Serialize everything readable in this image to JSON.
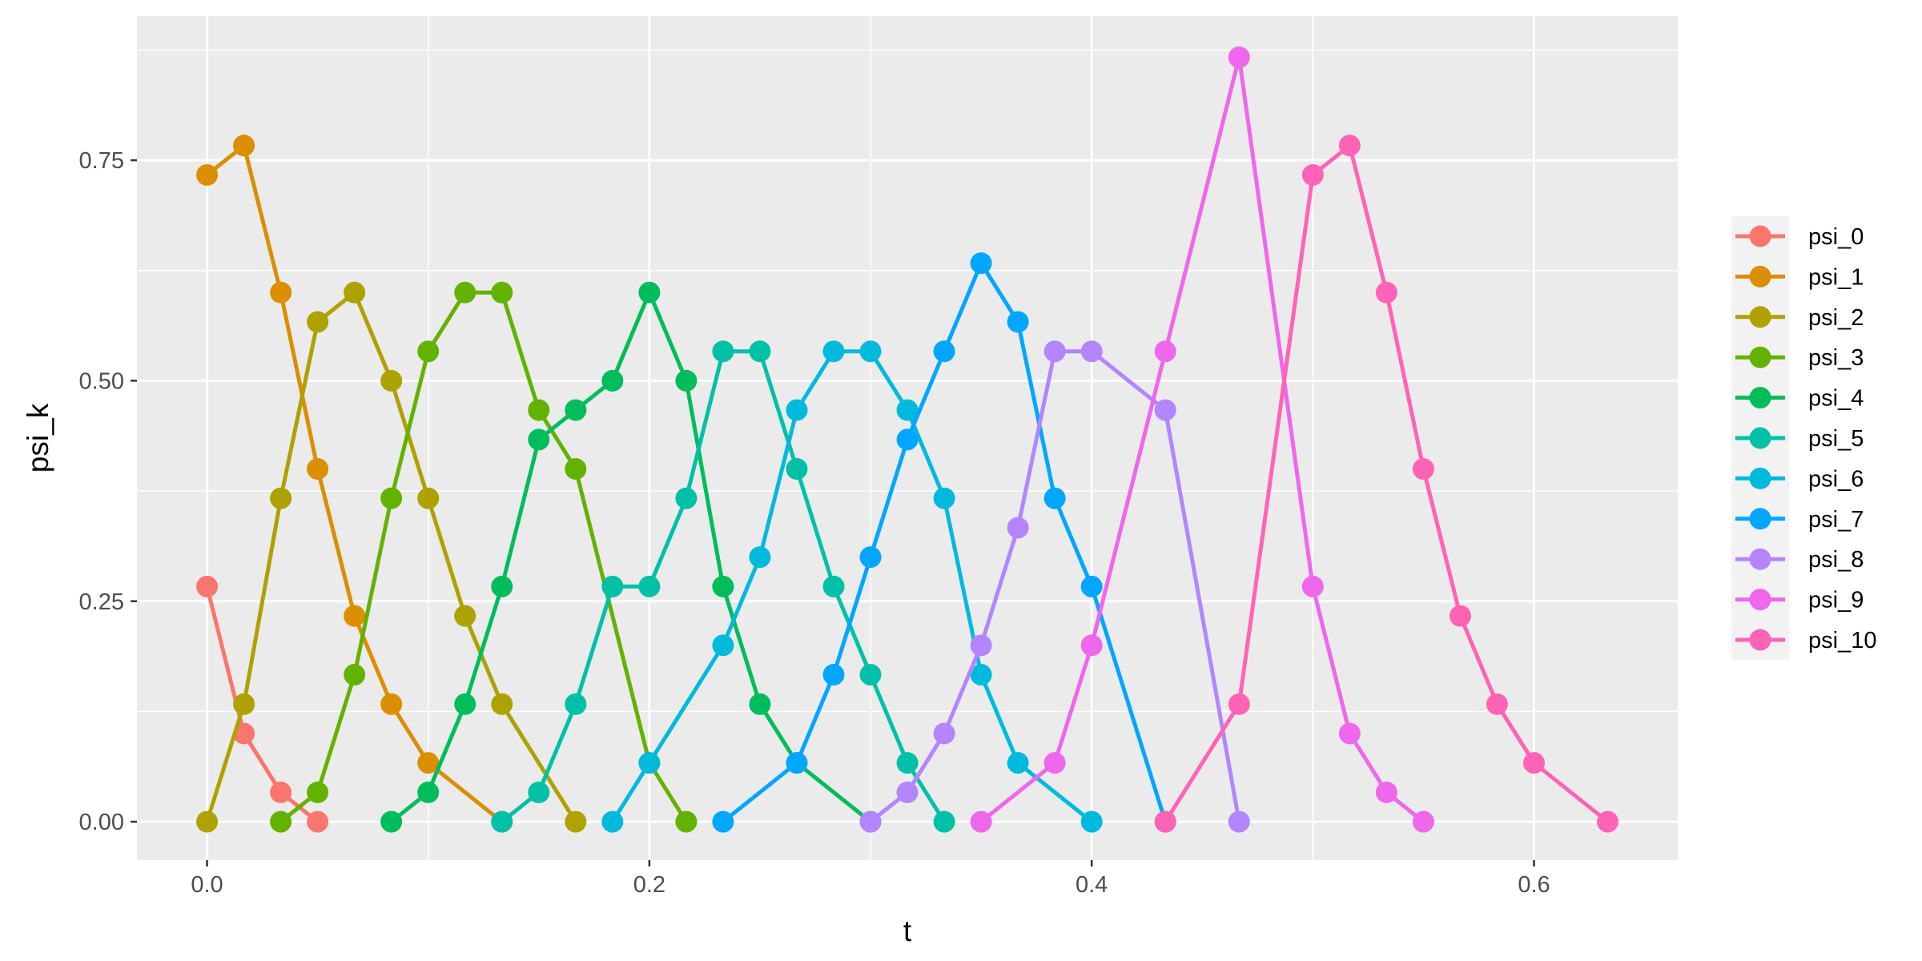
{
  "chart_data": {
    "type": "line",
    "title": "",
    "xlabel": "t",
    "ylabel": "psi_k",
    "xlim": [
      -0.0317,
      0.665
    ],
    "ylim": [
      -0.0435,
      0.9135
    ],
    "x_ticks": [
      0.0,
      0.2,
      0.4,
      0.6
    ],
    "x_tick_labels": [
      "0.0",
      "0.2",
      "0.4",
      "0.6"
    ],
    "y_ticks": [
      0.0,
      0.25,
      0.5,
      0.75
    ],
    "y_tick_labels": [
      "0.00",
      "0.25",
      "0.50",
      "0.75"
    ],
    "grid": true,
    "legend_position": "right",
    "series": [
      {
        "name": "psi_0",
        "color": "#F8766D",
        "x": [
          0,
          0.01667,
          0.03333,
          0.05
        ],
        "y": [
          0.2667,
          0.1,
          0.0333,
          0
        ]
      },
      {
        "name": "psi_1",
        "color": "#DB8E00",
        "x": [
          0,
          0.01667,
          0.03333,
          0.05,
          0.06667,
          0.08333,
          0.1,
          0.13333
        ],
        "y": [
          0.7333,
          0.7667,
          0.6,
          0.4,
          0.2333,
          0.1333,
          0.0667,
          0
        ]
      },
      {
        "name": "psi_2",
        "color": "#AEA200",
        "x": [
          0,
          0.01667,
          0.03333,
          0.05,
          0.06667,
          0.08333,
          0.1,
          0.11667,
          0.13333,
          0.16667
        ],
        "y": [
          0,
          0.1333,
          0.3667,
          0.5667,
          0.6,
          0.5,
          0.3667,
          0.2333,
          0.1333,
          0
        ]
      },
      {
        "name": "psi_3",
        "color": "#64B200",
        "x": [
          0.03333,
          0.05,
          0.06667,
          0.08333,
          0.1,
          0.11667,
          0.13333,
          0.15,
          0.16667,
          0.2,
          0.21667
        ],
        "y": [
          0,
          0.0333,
          0.1667,
          0.3667,
          0.5333,
          0.6,
          0.6,
          0.4667,
          0.4,
          0.0667,
          0
        ]
      },
      {
        "name": "psi_4",
        "color": "#00BD5C",
        "x": [
          0.08333,
          0.1,
          0.11667,
          0.13333,
          0.15,
          0.16667,
          0.18333,
          0.2,
          0.21667,
          0.23333,
          0.25,
          0.26667,
          0.3
        ],
        "y": [
          0,
          0.0333,
          0.1333,
          0.2667,
          0.4333,
          0.4667,
          0.5,
          0.6,
          0.5,
          0.2667,
          0.1333,
          0.0667,
          0
        ]
      },
      {
        "name": "psi_5",
        "color": "#00C1A7",
        "x": [
          0.13333,
          0.15,
          0.16667,
          0.18333,
          0.2,
          0.21667,
          0.23333,
          0.25,
          0.26667,
          0.28333,
          0.3,
          0.31667,
          0.33333
        ],
        "y": [
          0,
          0.0333,
          0.1333,
          0.2667,
          0.2667,
          0.3667,
          0.5333,
          0.5333,
          0.4,
          0.2667,
          0.1667,
          0.0667,
          0
        ]
      },
      {
        "name": "psi_6",
        "color": "#00BADE",
        "x": [
          0.18333,
          0.2,
          0.23333,
          0.25,
          0.26667,
          0.28333,
          0.3,
          0.31667,
          0.33333,
          0.35,
          0.36667,
          0.4
        ],
        "y": [
          0,
          0.0667,
          0.2,
          0.3,
          0.4667,
          0.5333,
          0.5333,
          0.4667,
          0.3667,
          0.1667,
          0.0667,
          0
        ]
      },
      {
        "name": "psi_7",
        "color": "#00A6FF",
        "x": [
          0.23333,
          0.26667,
          0.28333,
          0.3,
          0.31667,
          0.33333,
          0.35,
          0.36667,
          0.38333,
          0.4,
          0.43333
        ],
        "y": [
          0,
          0.0667,
          0.1667,
          0.3,
          0.4333,
          0.5333,
          0.6333,
          0.5667,
          0.3667,
          0.2667,
          0
        ]
      },
      {
        "name": "psi_8",
        "color": "#B385FF",
        "x": [
          0.3,
          0.31667,
          0.33333,
          0.35,
          0.36667,
          0.38333,
          0.4,
          0.43333,
          0.46667
        ],
        "y": [
          0,
          0.0333,
          0.1,
          0.2,
          0.3333,
          0.5333,
          0.5333,
          0.4667,
          0
        ]
      },
      {
        "name": "psi_9",
        "color": "#EF67EB",
        "x": [
          0.35,
          0.38333,
          0.4,
          0.43333,
          0.46667,
          0.5,
          0.51667,
          0.53333,
          0.55
        ],
        "y": [
          0,
          0.0667,
          0.2,
          0.5333,
          0.8667,
          0.2667,
          0.1,
          0.0333,
          0
        ]
      },
      {
        "name": "psi_10",
        "color": "#FF63B6",
        "x": [
          0.43333,
          0.46667,
          0.5,
          0.51667,
          0.53333,
          0.55,
          0.56667,
          0.58333,
          0.6,
          0.63333
        ],
        "y": [
          0,
          0.1333,
          0.7333,
          0.7667,
          0.6,
          0.4,
          0.2333,
          0.1333,
          0.0667,
          0
        ]
      }
    ]
  }
}
